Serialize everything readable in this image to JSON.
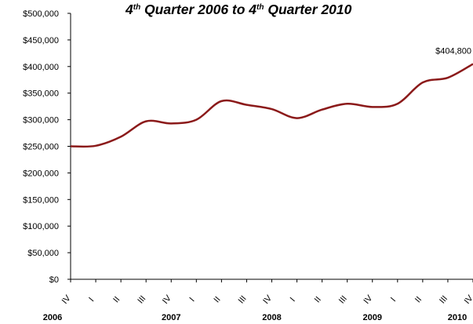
{
  "chart_data": {
    "type": "line",
    "title": {
      "part1": "4",
      "sup1": "th",
      "part2": " Quarter 2006 to 4",
      "sup2": "th",
      "part3": " Quarter 2010"
    },
    "xlabel": "",
    "ylabel": "",
    "ylim": [
      0,
      500000
    ],
    "y_ticks": [
      {
        "value": 0,
        "label": "$0"
      },
      {
        "value": 50000,
        "label": "$50,000"
      },
      {
        "value": 100000,
        "label": "$100,000"
      },
      {
        "value": 150000,
        "label": "$150,000"
      },
      {
        "value": 200000,
        "label": "$200,000"
      },
      {
        "value": 250000,
        "label": "$250,000"
      },
      {
        "value": 300000,
        "label": "$300,000"
      },
      {
        "value": 350000,
        "label": "$350,000"
      },
      {
        "value": 400000,
        "label": "$400,000"
      },
      {
        "value": 450000,
        "label": "$450,000"
      },
      {
        "value": 500000,
        "label": "$500,000"
      }
    ],
    "categories": [
      "IV",
      "I",
      "II",
      "III",
      "IV",
      "I",
      "II",
      "III",
      "IV",
      "I",
      "II",
      "III",
      "IV",
      "I",
      "II",
      "III",
      "IV"
    ],
    "year_labels": [
      {
        "label": "2006",
        "index": 0
      },
      {
        "label": "2007",
        "index": 4
      },
      {
        "label": "2008",
        "index": 8
      },
      {
        "label": "2009",
        "index": 12
      },
      {
        "label": "2010",
        "index": 16
      }
    ],
    "series": [
      {
        "values": [
          250000,
          251000,
          268000,
          297000,
          293000,
          300000,
          335000,
          328000,
          320000,
          303000,
          319000,
          330000,
          324000,
          330000,
          370000,
          379000,
          404800
        ]
      }
    ],
    "annotation": {
      "text": "$404,800",
      "index": 16
    },
    "colors": {
      "line": "#8b1a1a",
      "axis": "#000000"
    },
    "grid": false,
    "legend": "none"
  }
}
